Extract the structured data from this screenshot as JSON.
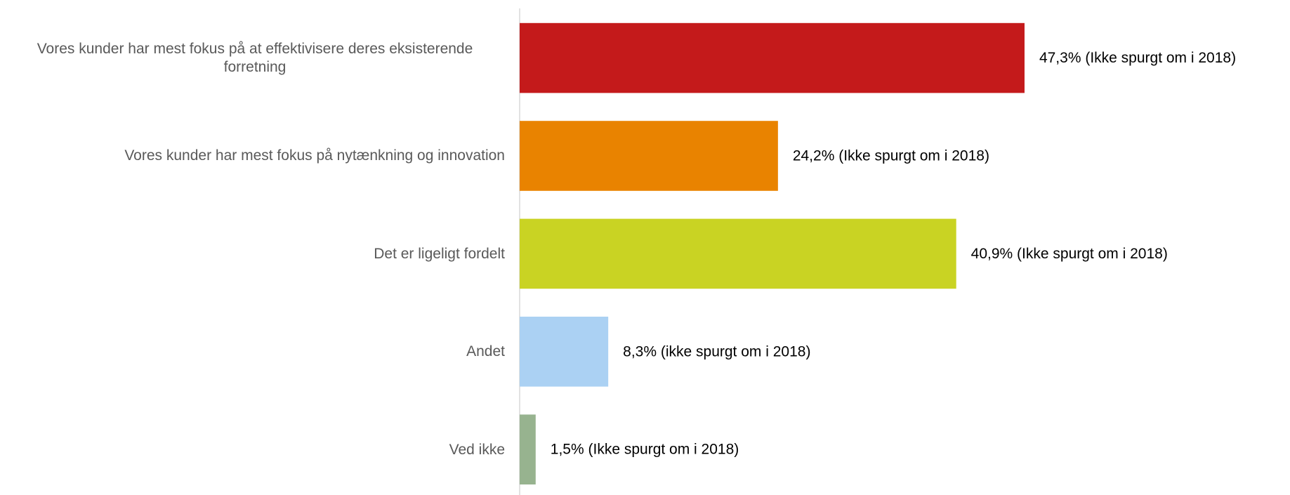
{
  "chart_data": {
    "type": "bar",
    "orientation": "horizontal",
    "categories": [
      "Vores kunder har mest fokus på at effektivisere deres eksisterende forretning",
      "Vores kunder har mest fokus på nytænkning og innovation",
      "Det er ligeligt fordelt",
      "Andet",
      "Ved ikke"
    ],
    "values": [
      47.3,
      24.2,
      40.9,
      8.3,
      1.5
    ],
    "value_labels": [
      "47,3% (Ikke spurgt om i 2018)",
      "24,2% (Ikke spurgt om i 2018)",
      "40,9% (Ikke spurgt om i 2018)",
      "8,3% (ikke spurgt om i 2018)",
      "1,5% (Ikke spurgt om i 2018)"
    ],
    "colors": [
      "#c41a1b",
      "#e98300",
      "#c9d323",
      "#abd1f3",
      "#97b38f"
    ],
    "xlim": [
      0,
      70
    ]
  }
}
